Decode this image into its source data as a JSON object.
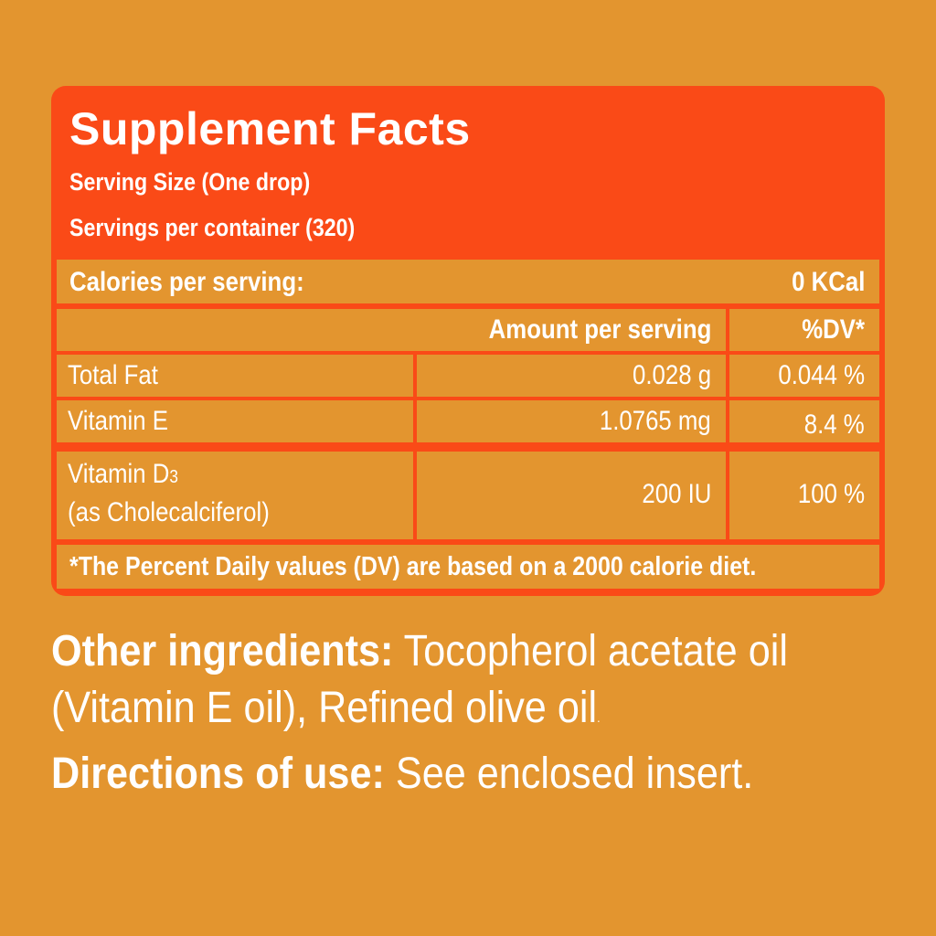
{
  "facts": {
    "title": "Supplement Facts",
    "serving_size": "Serving Size (One drop)",
    "servings_per_container": "Servings per container (320)",
    "calories_label": "Calories per serving:",
    "calories_value": "0 KCal",
    "header_amount": "Amount per serving",
    "header_dv": "%DV*",
    "rows": [
      {
        "name": "Total Fat",
        "amount": "0.028 g",
        "dv": "0.044 %"
      },
      {
        "name": "Vitamin E",
        "amount": "1.0765 mg",
        "dv": "8.4 %"
      },
      {
        "name": "Vitamin D",
        "name_sub": "3",
        "name_line2": "(as Cholecalciferol)",
        "amount": "200 IU",
        "dv": "100 %"
      }
    ],
    "footnote": "*The Percent Daily values (DV) are based on a 2000 calorie diet."
  },
  "ingredients": {
    "other_label": "Other ingredients:",
    "other_text_1": "Tocopherol acetate oil",
    "other_text_2": "(Vitamin E oil), Refined olive oil",
    "other_period": ".",
    "directions_label": "Directions of use:",
    "directions_text": "See enclosed insert."
  },
  "colors": {
    "background": "#e3952f",
    "label_panel": "#fa4a17",
    "text": "#ffffff"
  }
}
